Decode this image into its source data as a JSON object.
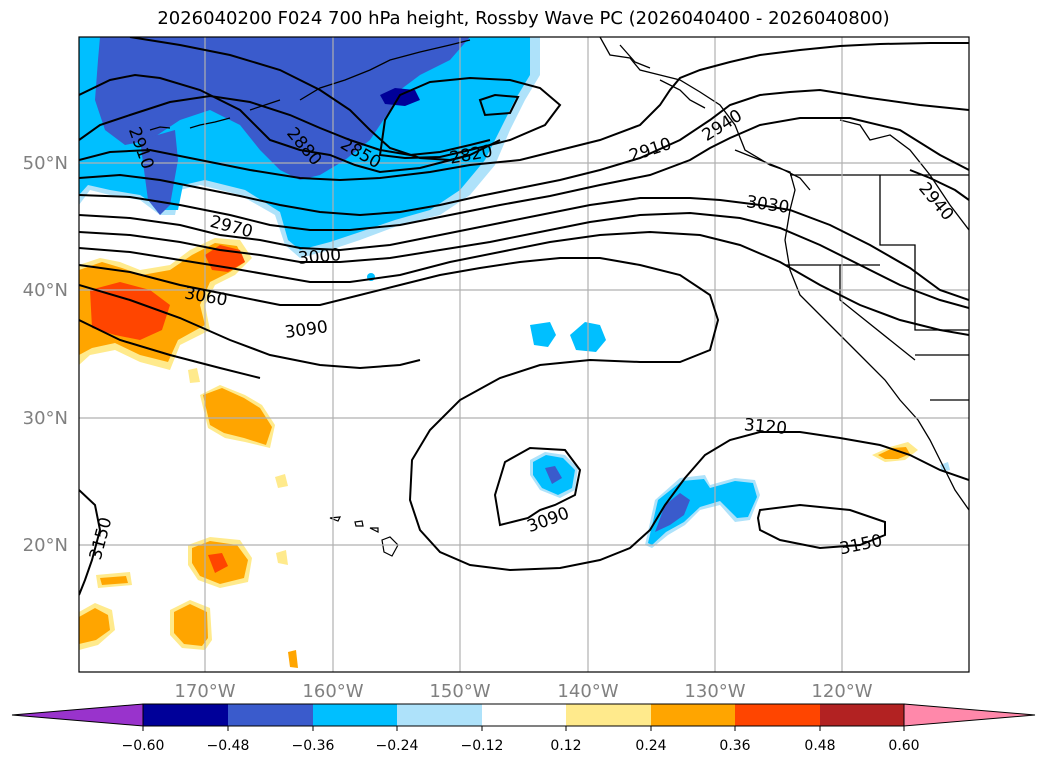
{
  "title": "2026040200 F024 700 hPa height, Rossby Wave PC (2026040400 - 2026040800)",
  "colors": {
    "shade_neg_060": "#9933cc",
    "shade_neg_048": "#000099",
    "shade_neg_036": "#3a5bcc",
    "shade_neg_024": "#00bfff",
    "shade_neg_012": "#aee2fa",
    "shade_pos_012": "#ffea8c",
    "shade_pos_024": "#ffa500",
    "shade_pos_036": "#ff4500",
    "shade_pos_048": "#b22222",
    "shade_pos_060": "#ff88aa",
    "contour": "#000000",
    "grid": "#b0b0b0",
    "tick_label": "#808080"
  },
  "map": {
    "lat_labels": [
      "50°N",
      "40°N",
      "30°N",
      "20°N"
    ],
    "lon_labels": [
      "170°W",
      "160°W",
      "150°W",
      "140°W",
      "130°W",
      "120°W"
    ],
    "contour_labels": [
      "2910",
      "2880",
      "2850",
      "2820",
      "2910",
      "2940",
      "2970",
      "3000",
      "3060",
      "3090",
      "3030",
      "2940",
      "3120",
      "3090",
      "3150",
      "3150"
    ]
  },
  "colorbar": {
    "bins": [
      "#9933cc",
      "#000099",
      "#3a5bcc",
      "#00bfff",
      "#aee2fa",
      "#ffffff",
      "#ffea8c",
      "#ffa500",
      "#ff4500",
      "#b22222",
      "#ff88aa"
    ],
    "tick_labels": [
      "−0.60",
      "−0.48",
      "−0.36",
      "−0.24",
      "−0.12",
      "0.12",
      "0.24",
      "0.36",
      "0.48",
      "0.60"
    ]
  }
}
